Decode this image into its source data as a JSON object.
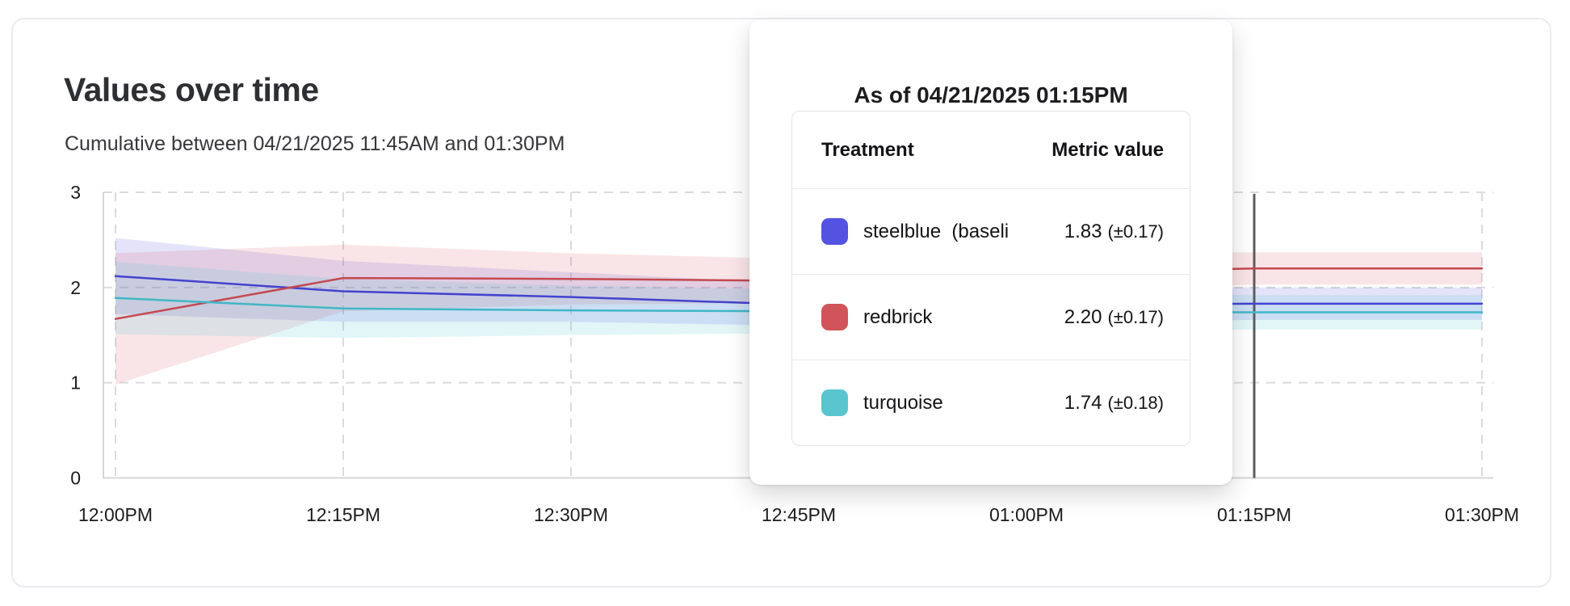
{
  "card": {
    "title": "Values over time",
    "subtitle": "Cumulative between 04/21/2025 11:45AM and 01:30PM"
  },
  "tooltip": {
    "heading": "As of 04/21/2025 01:15PM",
    "columns": [
      "Treatment",
      "Metric value"
    ],
    "rows": [
      {
        "label": "steelblue  (baseli",
        "swatch_color": "#5452e0",
        "value": "1.83",
        "ci": "(±0.17)"
      },
      {
        "label": "redbrick",
        "swatch_color": "#d0545a",
        "value": "2.20",
        "ci": "(±0.17)"
      },
      {
        "label": "turquoise",
        "swatch_color": "#5ac5cf",
        "value": "1.74",
        "ci": "(±0.18)"
      }
    ]
  },
  "chart_data": {
    "type": "line",
    "title": "Values over time",
    "subtitle": "Cumulative between 04/21/2025 11:45AM and 01:30PM",
    "x_labels": [
      "12:00PM",
      "12:15PM",
      "12:30PM",
      "12:45PM",
      "01:00PM",
      "01:15PM",
      "01:30PM"
    ],
    "y_ticks": [
      0,
      1,
      2,
      3
    ],
    "ylim": [
      0,
      3
    ],
    "grid": "dashed",
    "grid_color": "#dadbde",
    "axis_border_color": "#d5d6d9",
    "tick_label_color": "#1c1c1e",
    "crosshair_at_label": "01:15PM",
    "crosshair_color": "#5d5d5d",
    "series": [
      {
        "name": "steelblue (baseline)",
        "line_color": "#4343cf",
        "band_color": "rgba(88,82,224,0.16)",
        "values": [
          2.12,
          1.96,
          1.9,
          1.82,
          1.82,
          1.83,
          1.83
        ],
        "band_upper": [
          2.52,
          2.28,
          2.16,
          2.04,
          2.01,
          2.0,
          2.0
        ],
        "band_lower": [
          1.72,
          1.64,
          1.64,
          1.6,
          1.63,
          1.66,
          1.66
        ]
      },
      {
        "name": "redbrick",
        "line_color": "#c4494f",
        "band_color": "rgba(214,81,91,0.15)",
        "values": [
          1.67,
          2.1,
          2.09,
          2.07,
          2.15,
          2.2,
          2.2
        ],
        "band_upper": [
          2.36,
          2.45,
          2.36,
          2.3,
          2.35,
          2.37,
          2.37
        ],
        "band_lower": [
          0.98,
          1.75,
          1.82,
          1.84,
          1.95,
          2.03,
          2.03
        ]
      },
      {
        "name": "turquoise",
        "line_color": "#41b7c6",
        "band_color": "rgba(72,199,213,0.16)",
        "values": [
          1.89,
          1.78,
          1.76,
          1.75,
          1.74,
          1.74,
          1.74
        ],
        "band_upper": [
          2.27,
          2.09,
          2.02,
          1.98,
          1.94,
          1.92,
          1.92
        ],
        "band_lower": [
          1.51,
          1.47,
          1.5,
          1.52,
          1.54,
          1.56,
          1.56
        ]
      }
    ]
  }
}
